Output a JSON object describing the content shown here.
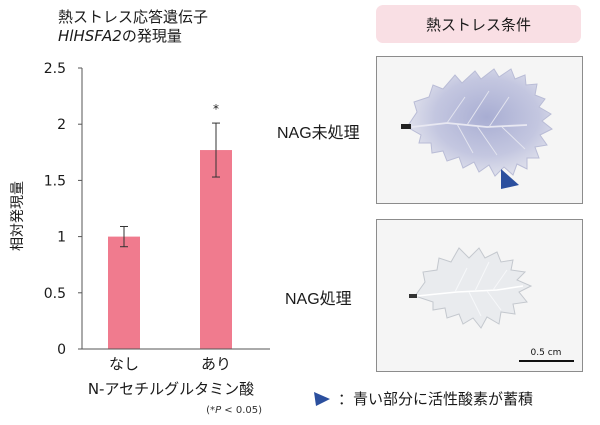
{
  "chart_header": {
    "title_line1": "熱ストレス応答遺伝子",
    "title_line2_gene": "HlHSFA2",
    "title_line2_rest": "の発現量"
  },
  "chart_data": {
    "type": "bar",
    "categories": [
      "なし",
      "あり"
    ],
    "values": [
      1.0,
      1.77
    ],
    "error": [
      0.09,
      0.24
    ],
    "significance": [
      "",
      "*"
    ],
    "ylabel": "相対発現量",
    "xlabel": "N-アセチルグルタミン酸",
    "ylim": [
      0,
      2.5
    ],
    "yticks": [
      0,
      0.5,
      1,
      1.5,
      2,
      2.5
    ],
    "ytick_labels": [
      "0",
      "0.5",
      "1",
      "1.5",
      "2",
      "2.5"
    ],
    "bar_color": "#f07b8e",
    "footnote_prefix": "(*",
    "footnote_p": "P",
    "footnote_rest": " < 0.05)"
  },
  "panel": {
    "header": "熱ストレス条件",
    "row1_label": "NAG未処理",
    "row2_label": "NAG処理",
    "scale_bar": "0.5 cm",
    "header_color": "#f9dfe4",
    "stain_color": "#8c92c4",
    "arrow_color": "#2b4f9e"
  },
  "legend": {
    "icon": "blue-triangle-icon",
    "text": "：青い部分に活性酸素が蓄積"
  }
}
